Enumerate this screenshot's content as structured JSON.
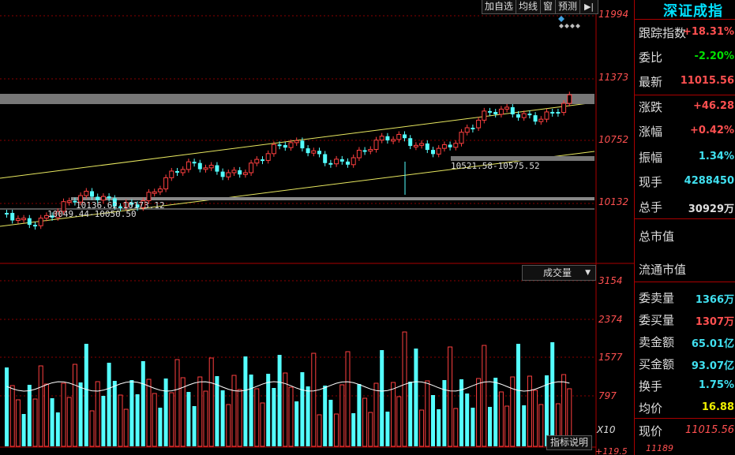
{
  "toolbar": {
    "items": [
      "加自选",
      "均线",
      "窗",
      "预测"
    ],
    "arrow_icon": "arrow-right-to-bar-icon"
  },
  "price_axis": {
    "labels": [
      "11994",
      "11373",
      "10752",
      "10132"
    ]
  },
  "volume_axis": {
    "labels": [
      "3154",
      "2374",
      "1577",
      "797"
    ],
    "unit": "X10",
    "bottom": "+119.5",
    "panel_bottom_price": "11189"
  },
  "annotations": {
    "gap1": "10521.58-10575.52",
    "gap2": "10136.62-10173.12",
    "gap3": "10049.44-10050.50"
  },
  "volume_selector": {
    "label": "成交量"
  },
  "indicator_button": {
    "label": "指标说明"
  },
  "panel": {
    "title": "深证成指",
    "rows": [
      {
        "label": "跟踪指数",
        "value": "+18.31%",
        "color": "red"
      },
      {
        "label": "委比",
        "value": "-2.20%",
        "color": "green"
      },
      {
        "label": "最新",
        "value": "11015.56",
        "color": "red"
      },
      {
        "label": "涨跌",
        "value": "+46.28",
        "color": "red"
      },
      {
        "label": "涨幅",
        "value": "+0.42%",
        "color": "red"
      },
      {
        "label": "振幅",
        "value": "1.34%",
        "color": "cyan"
      },
      {
        "label": "现手",
        "value": "4288450",
        "color": "cyan"
      },
      {
        "label": "总手",
        "value": "30929万",
        "color": "white"
      },
      {
        "label": "总市值",
        "value": "",
        "color": "white"
      },
      {
        "label": "流通市值",
        "value": "",
        "color": "white"
      },
      {
        "label": "委卖量",
        "value": "1366万",
        "color": "cyan"
      },
      {
        "label": "委买量",
        "value": "1307万",
        "color": "red"
      },
      {
        "label": "卖金额",
        "value": "65.01亿",
        "color": "cyan"
      },
      {
        "label": "买金额",
        "value": "93.07亿",
        "color": "cyan"
      },
      {
        "label": "换手",
        "value": "1.75%",
        "color": "cyan"
      },
      {
        "label": "均价",
        "value": "16.88",
        "color": "yellow"
      },
      {
        "label": "现价",
        "value": "11015.56",
        "color": "red"
      }
    ]
  },
  "colors": {
    "up": "#ff4040",
    "down": "#54ffff",
    "channel": "#e8e860",
    "grid": "#8a0000"
  }
}
